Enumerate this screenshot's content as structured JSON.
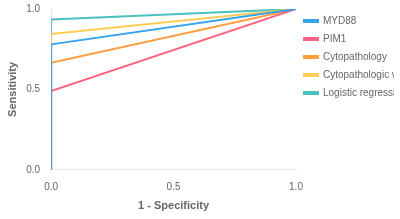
{
  "chart_data": {
    "type": "line",
    "xlabel": "1 - Specificity",
    "ylabel": "Sensitivity",
    "x": [
      0.0,
      0.0,
      1.0
    ],
    "series": [
      {
        "name": "MYD88",
        "values": [
          0.0,
          0.78,
          1.0
        ]
      },
      {
        "name": "PIM1",
        "values": [
          0.0,
          0.49,
          1.0
        ]
      },
      {
        "name": "Cytopathology",
        "values": [
          0.0,
          0.665,
          1.0
        ]
      },
      {
        "name": "Cytopathologic workup",
        "values": [
          0.0,
          0.845,
          1.0
        ]
      },
      {
        "name": "Logistic regression",
        "values": [
          0.0,
          0.935,
          1.0
        ]
      }
    ],
    "xlim": [
      0.0,
      1.0
    ],
    "ylim": [
      0.0,
      1.0
    ],
    "xticks": [
      {
        "value": 0.0,
        "label": "0.0"
      },
      {
        "value": 0.5,
        "label": "0.5"
      },
      {
        "value": 1.0,
        "label": "1.0"
      }
    ],
    "yticks": [
      {
        "value": 0.0,
        "label": "0.0"
      },
      {
        "value": 0.5,
        "label": "0.5"
      },
      {
        "value": 1.0,
        "label": "1.0"
      }
    ],
    "grid": false,
    "legend": "right"
  }
}
